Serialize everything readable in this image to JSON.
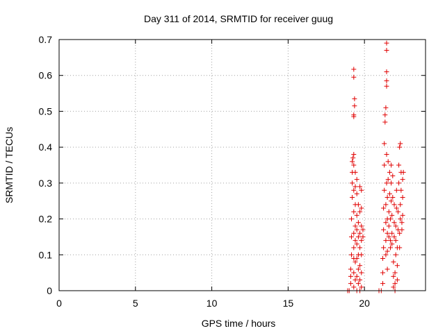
{
  "chart_data": {
    "type": "scatter",
    "title": "Day 311 of 2014, SRMTID for receiver guug",
    "xlabel": "GPS time / hours",
    "ylabel": "SRMTID / TECUs",
    "xlim": [
      0,
      24
    ],
    "ylim": [
      0,
      0.7
    ],
    "x_ticks": [
      "0",
      "5",
      "10",
      "15",
      "20"
    ],
    "y_ticks": [
      "0",
      "0.1",
      "0.2",
      "0.3",
      "0.4",
      "0.5",
      "0.6",
      "0.7"
    ],
    "grid": true,
    "legend": "none",
    "marker": "+",
    "color": "#e00000",
    "series": [
      {
        "points": [
          [
            18.9,
            0.0
          ],
          [
            19.0,
            0.0
          ],
          [
            19.1,
            0.02
          ],
          [
            19.1,
            0.04
          ],
          [
            19.1,
            0.06
          ],
          [
            19.15,
            0.1
          ],
          [
            19.15,
            0.15
          ],
          [
            19.15,
            0.2
          ],
          [
            19.2,
            0.26
          ],
          [
            19.2,
            0.3
          ],
          [
            19.2,
            0.33
          ],
          [
            19.2,
            0.36
          ],
          [
            19.25,
            0.37
          ],
          [
            19.3,
            0.01
          ],
          [
            19.3,
            0.05
          ],
          [
            19.3,
            0.09
          ],
          [
            19.3,
            0.12
          ],
          [
            19.3,
            0.16
          ],
          [
            19.3,
            0.22
          ],
          [
            19.3,
            0.28
          ],
          [
            19.3,
            0.35
          ],
          [
            19.3,
            0.38
          ],
          [
            19.3,
            0.485
          ],
          [
            19.3,
            0.49
          ],
          [
            19.35,
            0.515
          ],
          [
            19.35,
            0.535
          ],
          [
            19.3,
            0.595
          ],
          [
            19.3,
            0.617
          ],
          [
            19.4,
            0.03
          ],
          [
            19.4,
            0.08
          ],
          [
            19.4,
            0.14
          ],
          [
            19.4,
            0.18
          ],
          [
            19.4,
            0.24
          ],
          [
            19.4,
            0.29
          ],
          [
            19.4,
            0.33
          ],
          [
            19.5,
            0.0
          ],
          [
            19.5,
            0.04
          ],
          [
            19.5,
            0.09
          ],
          [
            19.5,
            0.13
          ],
          [
            19.5,
            0.17
          ],
          [
            19.5,
            0.21
          ],
          [
            19.5,
            0.27
          ],
          [
            19.5,
            0.31
          ],
          [
            19.6,
            0.02
          ],
          [
            19.6,
            0.06
          ],
          [
            19.6,
            0.1
          ],
          [
            19.6,
            0.15
          ],
          [
            19.6,
            0.19
          ],
          [
            19.6,
            0.24
          ],
          [
            19.7,
            0.0
          ],
          [
            19.7,
            0.03
          ],
          [
            19.7,
            0.07
          ],
          [
            19.7,
            0.12
          ],
          [
            19.7,
            0.16
          ],
          [
            19.7,
            0.22
          ],
          [
            19.7,
            0.29
          ],
          [
            19.8,
            0.01
          ],
          [
            19.8,
            0.05
          ],
          [
            19.8,
            0.1
          ],
          [
            19.8,
            0.14
          ],
          [
            19.8,
            0.18
          ],
          [
            19.8,
            0.23
          ],
          [
            19.8,
            0.28
          ],
          [
            19.9,
            0.15
          ],
          [
            19.9,
            0.17
          ],
          [
            20.95,
            0.0
          ],
          [
            21.1,
            0.0
          ],
          [
            21.2,
            0.02
          ],
          [
            21.2,
            0.05
          ],
          [
            21.2,
            0.09
          ],
          [
            21.25,
            0.12
          ],
          [
            21.25,
            0.17
          ],
          [
            21.25,
            0.23
          ],
          [
            21.3,
            0.28
          ],
          [
            21.3,
            0.35
          ],
          [
            21.3,
            0.41
          ],
          [
            21.35,
            0.47
          ],
          [
            21.35,
            0.49
          ],
          [
            21.4,
            0.51
          ],
          [
            21.4,
            0.1
          ],
          [
            21.4,
            0.14
          ],
          [
            21.4,
            0.19
          ],
          [
            21.4,
            0.24
          ],
          [
            21.45,
            0.3
          ],
          [
            21.45,
            0.38
          ],
          [
            21.45,
            0.57
          ],
          [
            21.45,
            0.585
          ],
          [
            21.45,
            0.61
          ],
          [
            21.45,
            0.67
          ],
          [
            21.45,
            0.69
          ],
          [
            21.5,
            0.06
          ],
          [
            21.5,
            0.11
          ],
          [
            21.5,
            0.16
          ],
          [
            21.5,
            0.2
          ],
          [
            21.5,
            0.26
          ],
          [
            21.55,
            0.31
          ],
          [
            21.55,
            0.36
          ],
          [
            21.6,
            0.15
          ],
          [
            21.6,
            0.18
          ],
          [
            21.6,
            0.22
          ],
          [
            21.65,
            0.27
          ],
          [
            21.65,
            0.33
          ],
          [
            21.7,
            0.12
          ],
          [
            21.7,
            0.14
          ],
          [
            21.7,
            0.2
          ],
          [
            21.75,
            0.25
          ],
          [
            21.75,
            0.3
          ],
          [
            21.75,
            0.35
          ],
          [
            21.8,
            0.13
          ],
          [
            21.8,
            0.16
          ],
          [
            21.8,
            0.21
          ],
          [
            21.85,
            0.26
          ],
          [
            21.85,
            0.32
          ],
          [
            21.9,
            0.01
          ],
          [
            21.9,
            0.04
          ],
          [
            21.9,
            0.08
          ],
          [
            21.95,
            0.15
          ],
          [
            21.95,
            0.19
          ],
          [
            21.95,
            0.24
          ],
          [
            22.0,
            0.0
          ],
          [
            22.0,
            0.02
          ],
          [
            22.0,
            0.05
          ],
          [
            22.05,
            0.1
          ],
          [
            22.05,
            0.14
          ],
          [
            22.05,
            0.18
          ],
          [
            22.1,
            0.23
          ],
          [
            22.1,
            0.28
          ],
          [
            22.15,
            0.03
          ],
          [
            22.15,
            0.07
          ],
          [
            22.15,
            0.12
          ],
          [
            22.2,
            0.17
          ],
          [
            22.2,
            0.22
          ],
          [
            22.25,
            0.3
          ],
          [
            22.25,
            0.35
          ],
          [
            22.3,
            0.4
          ],
          [
            22.35,
            0.41
          ],
          [
            22.3,
            0.12
          ],
          [
            22.3,
            0.16
          ],
          [
            22.35,
            0.2
          ],
          [
            22.35,
            0.24
          ],
          [
            22.4,
            0.28
          ],
          [
            22.4,
            0.33
          ],
          [
            22.45,
            0.17
          ],
          [
            22.45,
            0.19
          ],
          [
            22.5,
            0.21
          ],
          [
            22.5,
            0.26
          ],
          [
            22.5,
            0.31
          ],
          [
            22.55,
            0.33
          ]
        ]
      }
    ]
  }
}
